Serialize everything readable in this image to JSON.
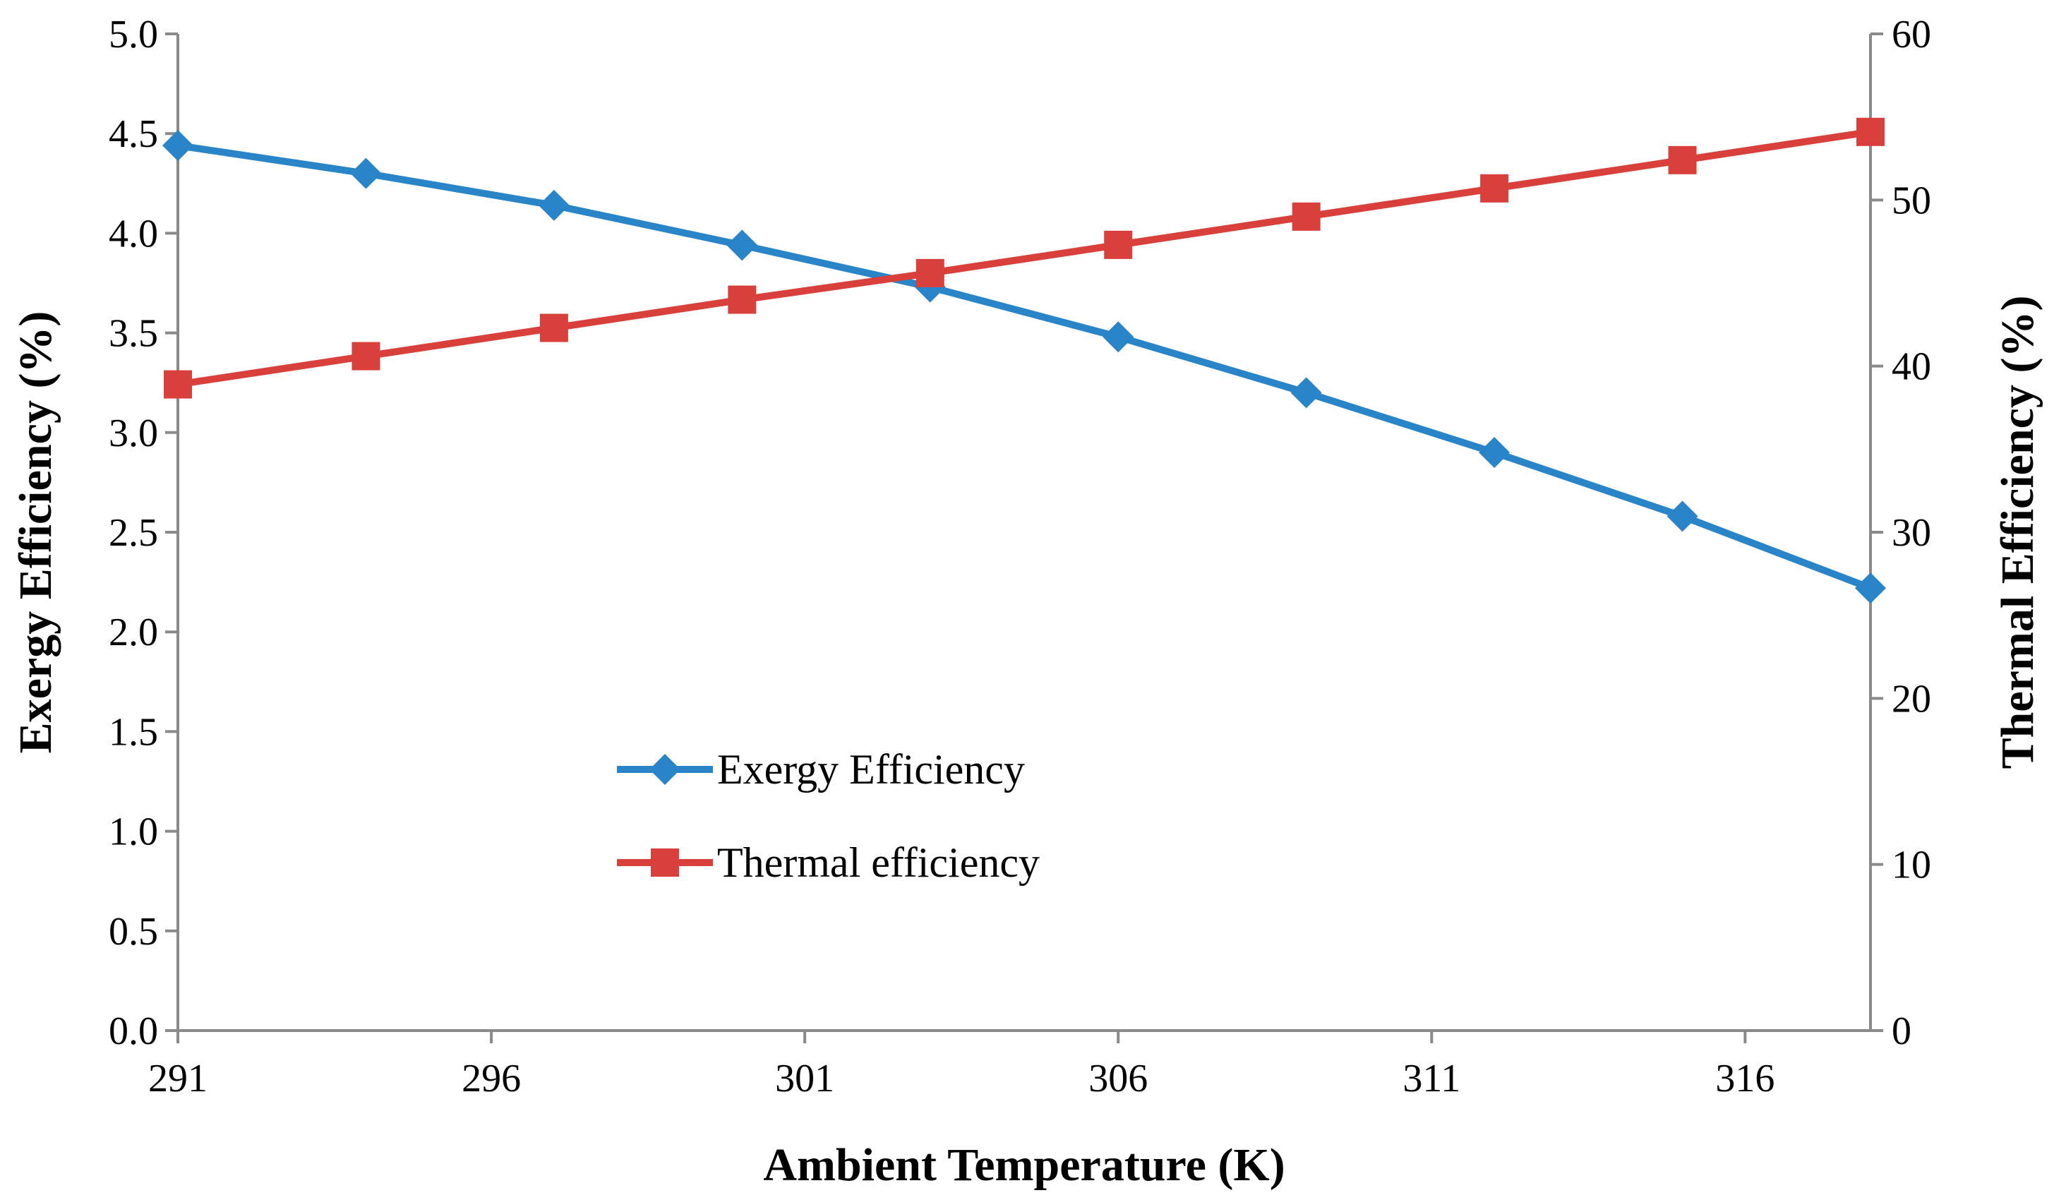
{
  "chart_data": {
    "type": "line",
    "xlabel": "Ambient Temperature (K)",
    "ylabel": "Exergy Efficiency (%)",
    "y2label": "Thermal Efficiency (%)",
    "xlim": [
      291,
      318
    ],
    "ylim": [
      0,
      5
    ],
    "y2lim": [
      0,
      60
    ],
    "x_ticks": [
      291,
      296,
      301,
      306,
      311,
      316
    ],
    "y_ticks": [
      "0.0",
      "0.5",
      "1.0",
      "1.5",
      "2.0",
      "2.5",
      "3.0",
      "3.5",
      "4.0",
      "4.5",
      "5.0"
    ],
    "y2_ticks": [
      "0",
      "10",
      "20",
      "30",
      "40",
      "50",
      "60"
    ],
    "grid": false,
    "legend_position": "center-left",
    "series": [
      {
        "name": "Exergy Efficiency",
        "axis": "left",
        "color": "#2A85C8",
        "marker": "diamond",
        "x": [
          291,
          294,
          297,
          300,
          303,
          306,
          309,
          312,
          315,
          318
        ],
        "values": [
          4.44,
          4.3,
          4.14,
          3.94,
          3.73,
          3.48,
          3.2,
          2.9,
          2.58,
          2.22
        ]
      },
      {
        "name": "Thermal efficiency",
        "axis": "right",
        "color": "#D9403B",
        "marker": "square",
        "x": [
          291,
          294,
          297,
          300,
          303,
          306,
          309,
          312,
          315,
          318
        ],
        "values": [
          38.9,
          40.6,
          42.3,
          44.0,
          45.6,
          47.3,
          49.0,
          50.7,
          52.4,
          54.1
        ]
      }
    ]
  }
}
